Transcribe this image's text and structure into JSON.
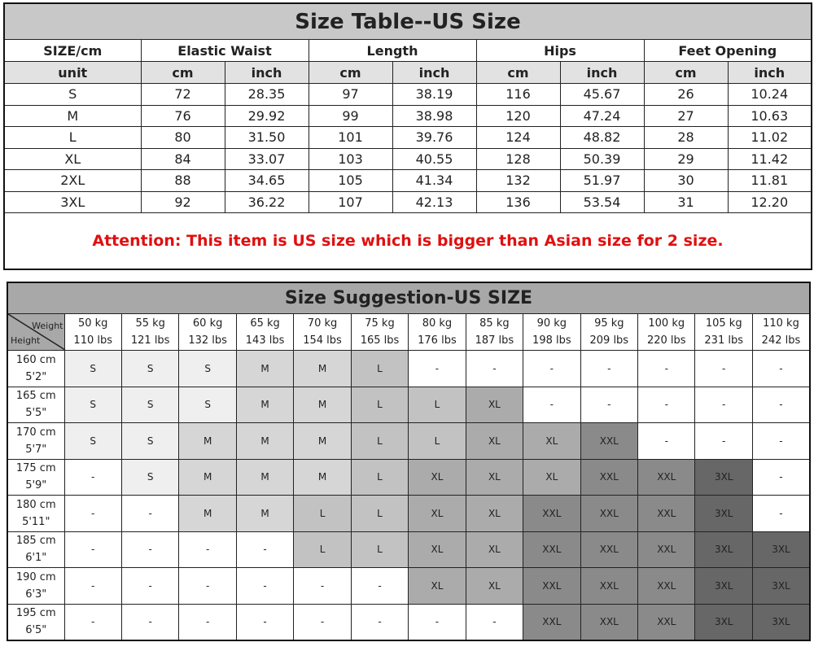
{
  "size_table": {
    "title": "Size Table--US Size",
    "size_label": "SIZE/cm",
    "unit_label": "unit",
    "groups": [
      "Elastic Waist",
      "Length",
      "Hips",
      "Feet Opening"
    ],
    "units": [
      "cm",
      "inch",
      "cm",
      "inch",
      "cm",
      "inch",
      "cm",
      "inch"
    ],
    "rows": [
      [
        "S",
        "72",
        "28.35",
        "97",
        "38.19",
        "116",
        "45.67",
        "26",
        "10.24"
      ],
      [
        "M",
        "76",
        "29.92",
        "99",
        "38.98",
        "120",
        "47.24",
        "27",
        "10.63"
      ],
      [
        "L",
        "80",
        "31.50",
        "101",
        "39.76",
        "124",
        "48.82",
        "28",
        "11.02"
      ],
      [
        "XL",
        "84",
        "33.07",
        "103",
        "40.55",
        "128",
        "50.39",
        "29",
        "11.42"
      ],
      [
        "2XL",
        "88",
        "34.65",
        "105",
        "41.34",
        "132",
        "51.97",
        "30",
        "11.81"
      ],
      [
        "3XL",
        "92",
        "36.22",
        "107",
        "42.13",
        "136",
        "53.54",
        "31",
        "12.20"
      ]
    ],
    "attention": "Attention:  This item is US size which is bigger than Asian size for 2 size."
  },
  "size_suggestion": {
    "title": "Size Suggestion-US SIZE",
    "corner_weight": "Weight",
    "corner_height": "Height",
    "weights": [
      [
        "50 kg",
        "110 lbs"
      ],
      [
        "55 kg",
        "121 lbs"
      ],
      [
        "60 kg",
        "132 lbs"
      ],
      [
        "65 kg",
        "143 lbs"
      ],
      [
        "70 kg",
        "154 lbs"
      ],
      [
        "75 kg",
        "165 lbs"
      ],
      [
        "80 kg",
        "176 lbs"
      ],
      [
        "85 kg",
        "187 lbs"
      ],
      [
        "90 kg",
        "198 lbs"
      ],
      [
        "95 kg",
        "209 lbs"
      ],
      [
        "100 kg",
        "220 lbs"
      ],
      [
        "105 kg",
        "231 lbs"
      ],
      [
        "110 kg",
        "242 lbs"
      ]
    ],
    "rows": [
      {
        "height": [
          "160 cm",
          "5'2\""
        ],
        "sizes": [
          "S",
          "S",
          "S",
          "M",
          "M",
          "L",
          "-",
          "-",
          "-",
          "-",
          "-",
          "-",
          "-"
        ]
      },
      {
        "height": [
          "165 cm",
          "5'5\""
        ],
        "sizes": [
          "S",
          "S",
          "S",
          "M",
          "M",
          "L",
          "L",
          "XL",
          "-",
          "-",
          "-",
          "-",
          "-"
        ]
      },
      {
        "height": [
          "170 cm",
          "5'7\""
        ],
        "sizes": [
          "S",
          "S",
          "M",
          "M",
          "M",
          "L",
          "L",
          "XL",
          "XL",
          "XXL",
          "-",
          "-",
          "-"
        ]
      },
      {
        "height": [
          "175 cm",
          "5'9\""
        ],
        "sizes": [
          "-",
          "S",
          "M",
          "M",
          "M",
          "L",
          "XL",
          "XL",
          "XL",
          "XXL",
          "XXL",
          "3XL",
          "-"
        ]
      },
      {
        "height": [
          "180 cm",
          "5'11\""
        ],
        "sizes": [
          "-",
          "-",
          "M",
          "M",
          "L",
          "L",
          "XL",
          "XL",
          "XXL",
          "XXL",
          "XXL",
          "3XL",
          "-"
        ]
      },
      {
        "height": [
          "185 cm",
          "6'1\""
        ],
        "sizes": [
          "-",
          "-",
          "-",
          "-",
          "L",
          "L",
          "XL",
          "XL",
          "XXL",
          "XXL",
          "XXL",
          "3XL",
          "3XL"
        ]
      },
      {
        "height": [
          "190 cm",
          "6'3\""
        ],
        "sizes": [
          "-",
          "-",
          "-",
          "-",
          "-",
          "-",
          "XL",
          "XL",
          "XXL",
          "XXL",
          "XXL",
          "3XL",
          "3XL"
        ]
      },
      {
        "height": [
          "195 cm",
          "6'5\""
        ],
        "sizes": [
          "-",
          "-",
          "-",
          "-",
          "-",
          "-",
          "-",
          "-",
          "XXL",
          "XXL",
          "XXL",
          "3XL",
          "3XL"
        ]
      }
    ],
    "shade_colors": {
      "S": "#efefef",
      "M": "#d6d6d6",
      "L": "#c2c2c2",
      "XL": "#ababab",
      "XXL": "#8a8a8a",
      "3XL": "#676767",
      "-": "#ffffff"
    }
  }
}
